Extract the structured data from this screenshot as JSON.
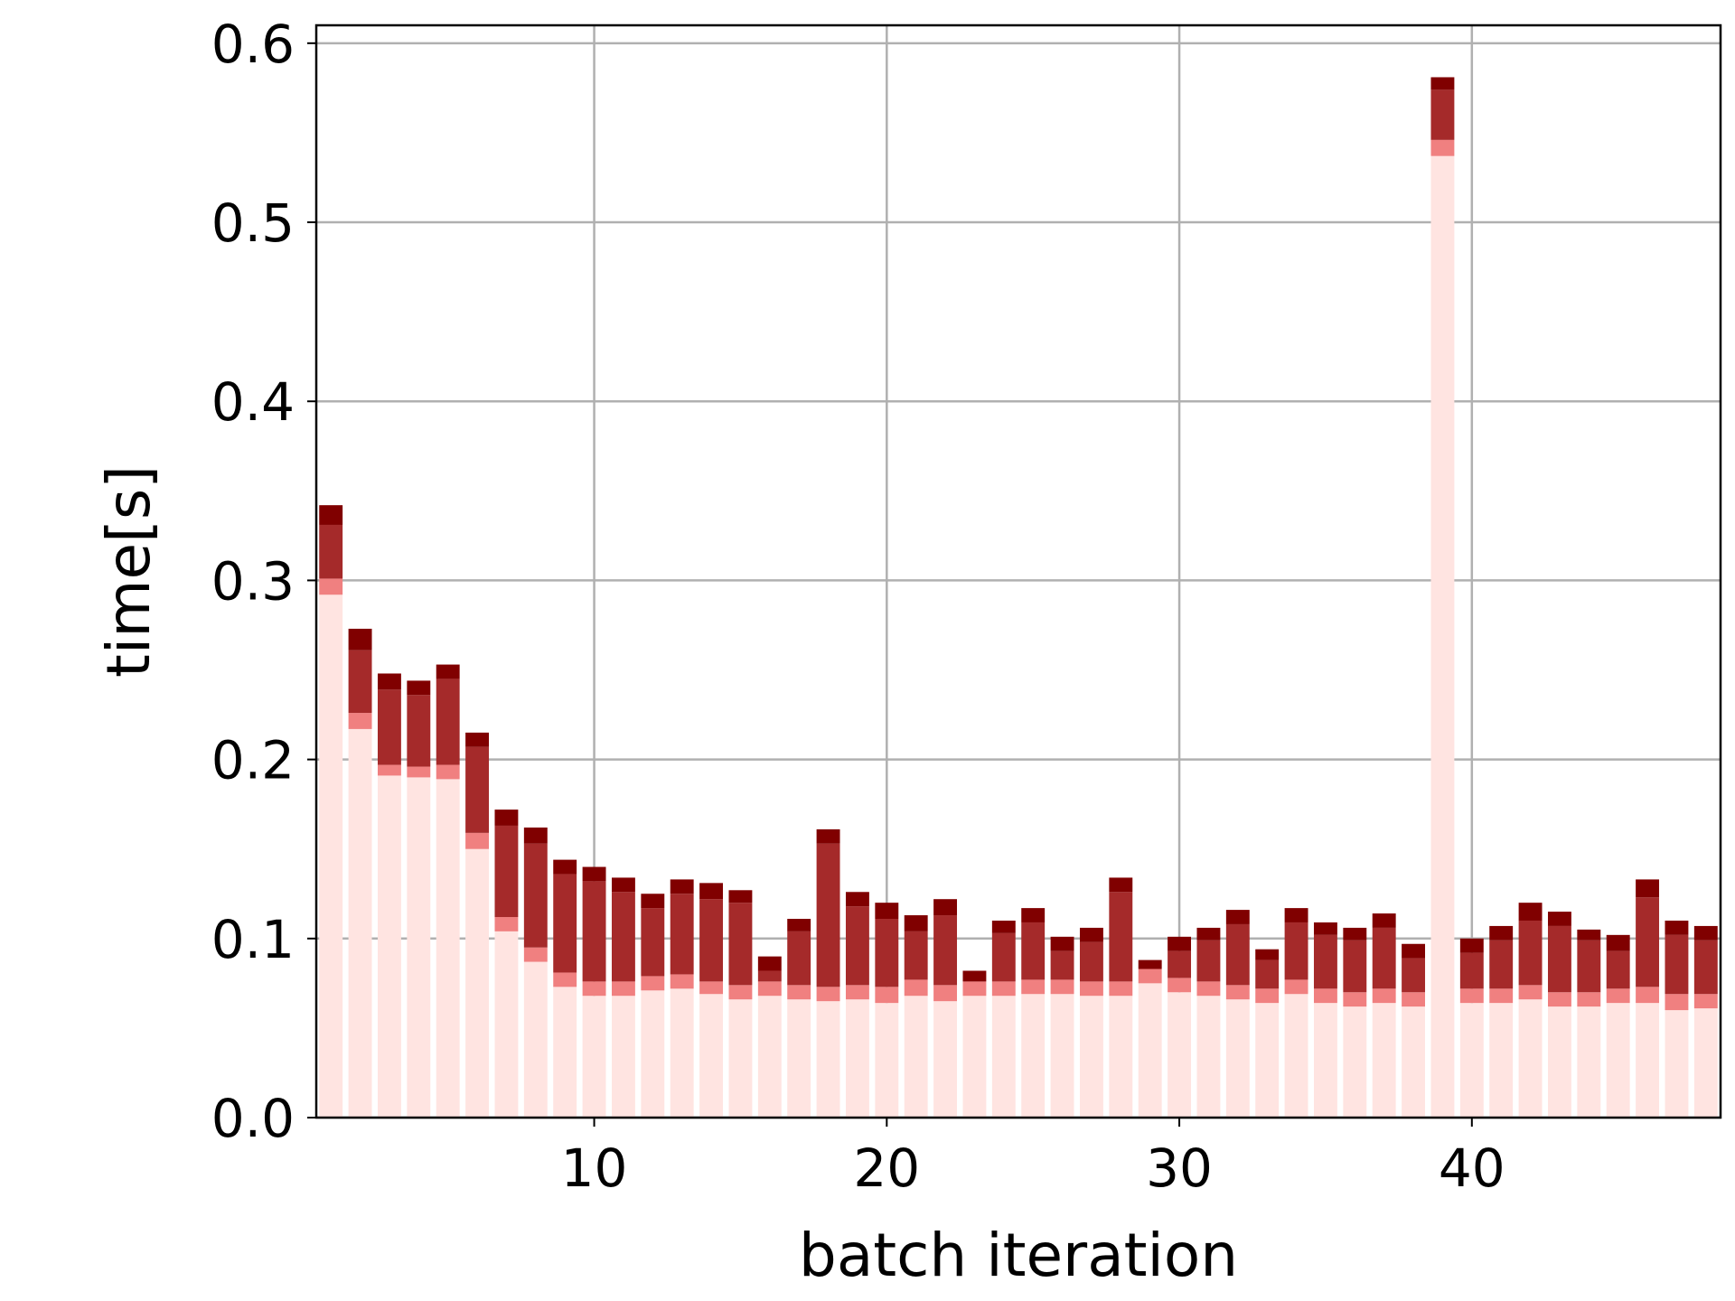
{
  "chart_data": {
    "type": "bar",
    "stacked": true,
    "xlabel": "batch iteration",
    "ylabel": "time[s]",
    "xlim": [
      0.5,
      48.5
    ],
    "ylim": [
      0,
      0.61
    ],
    "xticks": [
      10,
      20,
      30,
      40
    ],
    "yticks": [
      0.0,
      0.1,
      0.2,
      0.3,
      0.4,
      0.5,
      0.6
    ],
    "ytick_labels": [
      "0.0",
      "0.1",
      "0.2",
      "0.3",
      "0.4",
      "0.5",
      "0.6"
    ],
    "grid": true,
    "x": [
      1,
      2,
      3,
      4,
      5,
      6,
      7,
      8,
      9,
      10,
      11,
      12,
      13,
      14,
      15,
      16,
      17,
      18,
      19,
      20,
      21,
      22,
      23,
      24,
      25,
      26,
      27,
      28,
      29,
      30,
      31,
      32,
      33,
      34,
      35,
      36,
      37,
      38,
      39,
      40,
      41,
      42,
      43,
      44,
      45,
      46,
      47,
      48
    ],
    "series": [
      {
        "color": "#ffe4e1",
        "values": [
          0.292,
          0.217,
          0.191,
          0.19,
          0.189,
          0.15,
          0.104,
          0.087,
          0.073,
          0.068,
          0.068,
          0.071,
          0.072,
          0.069,
          0.066,
          0.068,
          0.066,
          0.065,
          0.066,
          0.064,
          0.068,
          0.065,
          0.068,
          0.068,
          0.069,
          0.069,
          0.068,
          0.068,
          0.075,
          0.07,
          0.068,
          0.066,
          0.064,
          0.069,
          0.064,
          0.062,
          0.064,
          0.062,
          0.537,
          0.064,
          0.064,
          0.066,
          0.062,
          0.062,
          0.064,
          0.064,
          0.06,
          0.061
        ]
      },
      {
        "color": "#f08080",
        "values": [
          0.009,
          0.009,
          0.006,
          0.006,
          0.008,
          0.009,
          0.008,
          0.008,
          0.008,
          0.008,
          0.008,
          0.008,
          0.008,
          0.007,
          0.008,
          0.008,
          0.008,
          0.008,
          0.008,
          0.009,
          0.009,
          0.009,
          0.008,
          0.008,
          0.008,
          0.008,
          0.008,
          0.008,
          0.008,
          0.008,
          0.008,
          0.008,
          0.008,
          0.008,
          0.008,
          0.008,
          0.008,
          0.008,
          0.009,
          0.008,
          0.008,
          0.008,
          0.008,
          0.008,
          0.008,
          0.009,
          0.009,
          0.008
        ]
      },
      {
        "color": "#a52a2a",
        "values": [
          0.03,
          0.035,
          0.042,
          0.04,
          0.048,
          0.048,
          0.051,
          0.058,
          0.055,
          0.056,
          0.05,
          0.038,
          0.045,
          0.046,
          0.046,
          0.006,
          0.03,
          0.08,
          0.044,
          0.038,
          0.027,
          0.039,
          0.0,
          0.027,
          0.032,
          0.016,
          0.022,
          0.05,
          0.0,
          0.015,
          0.023,
          0.034,
          0.016,
          0.032,
          0.03,
          0.029,
          0.034,
          0.019,
          0.028,
          0.02,
          0.027,
          0.036,
          0.037,
          0.029,
          0.021,
          0.05,
          0.033,
          0.03
        ]
      },
      {
        "color": "#800000",
        "values": [
          0.011,
          0.012,
          0.009,
          0.008,
          0.008,
          0.008,
          0.009,
          0.009,
          0.008,
          0.008,
          0.008,
          0.008,
          0.008,
          0.009,
          0.007,
          0.008,
          0.007,
          0.008,
          0.008,
          0.009,
          0.009,
          0.009,
          0.006,
          0.007,
          0.008,
          0.008,
          0.008,
          0.008,
          0.005,
          0.008,
          0.007,
          0.008,
          0.006,
          0.008,
          0.007,
          0.007,
          0.008,
          0.008,
          0.007,
          0.008,
          0.008,
          0.01,
          0.008,
          0.006,
          0.009,
          0.01,
          0.008,
          0.008
        ]
      }
    ]
  }
}
